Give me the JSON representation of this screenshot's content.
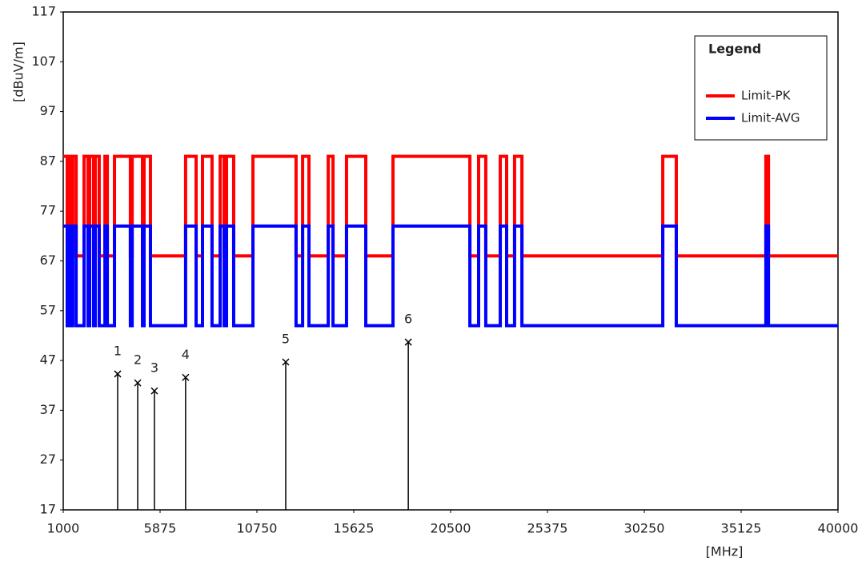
{
  "chart_data": {
    "type": "line",
    "step": "post",
    "y_label": "[dBuV/m]",
    "x_label": "[MHz]",
    "legend_title": "Legend",
    "legend": "upper right",
    "xlim": [
      1000,
      40000
    ],
    "xticks": [
      1000,
      5875,
      10750,
      15625,
      20500,
      25375,
      30250,
      35125,
      40000
    ],
    "ylim": [
      17,
      117
    ],
    "yticks": [
      17,
      27,
      37,
      47,
      57,
      67,
      77,
      87,
      97,
      107,
      117
    ],
    "x": [
      1000,
      1200,
      1280,
      1400,
      1480,
      1650,
      2050,
      2250,
      2330,
      2530,
      2610,
      2810,
      3100,
      3220,
      3580,
      4380,
      4470,
      4990,
      5070,
      5390,
      7160,
      7690,
      8010,
      8490,
      8900,
      9100,
      9220,
      9580,
      10550,
      12720,
      13050,
      13370,
      14340,
      14580,
      15260,
      16230,
      17600,
      21470,
      21910,
      22270,
      23000,
      23320,
      23720,
      24090,
      31180,
      31860,
      36370,
      36500,
      40000
    ],
    "series": [
      {
        "name": "Limit-PK",
        "color": "#ff0000",
        "values": [
          88,
          68,
          88,
          68,
          88,
          68,
          88,
          68,
          88,
          68,
          88,
          68,
          88,
          68,
          88,
          68,
          88,
          68,
          88,
          68,
          88,
          68,
          88,
          68,
          88,
          68,
          88,
          68,
          88,
          68,
          88,
          68,
          88,
          68,
          88,
          68,
          88,
          68,
          88,
          68,
          88,
          68,
          88,
          68,
          88,
          68,
          88,
          68,
          68
        ]
      },
      {
        "name": "Limit-AVG",
        "color": "#0000ff",
        "values": [
          74,
          54,
          74,
          54,
          74,
          54,
          74,
          54,
          74,
          54,
          74,
          54,
          74,
          54,
          74,
          54,
          74,
          54,
          74,
          54,
          74,
          54,
          74,
          54,
          74,
          54,
          74,
          54,
          74,
          54,
          74,
          54,
          74,
          54,
          74,
          54,
          74,
          54,
          74,
          54,
          74,
          54,
          74,
          54,
          74,
          54,
          74,
          54,
          54
        ]
      }
    ],
    "markers": {
      "labels": [
        "1",
        "2",
        "3",
        "4",
        "5",
        "6"
      ],
      "x": [
        3740,
        4750,
        5590,
        7160,
        12200,
        18370
      ],
      "values": [
        44.3,
        42.5,
        40.9,
        43.6,
        46.7,
        50.7
      ]
    }
  }
}
